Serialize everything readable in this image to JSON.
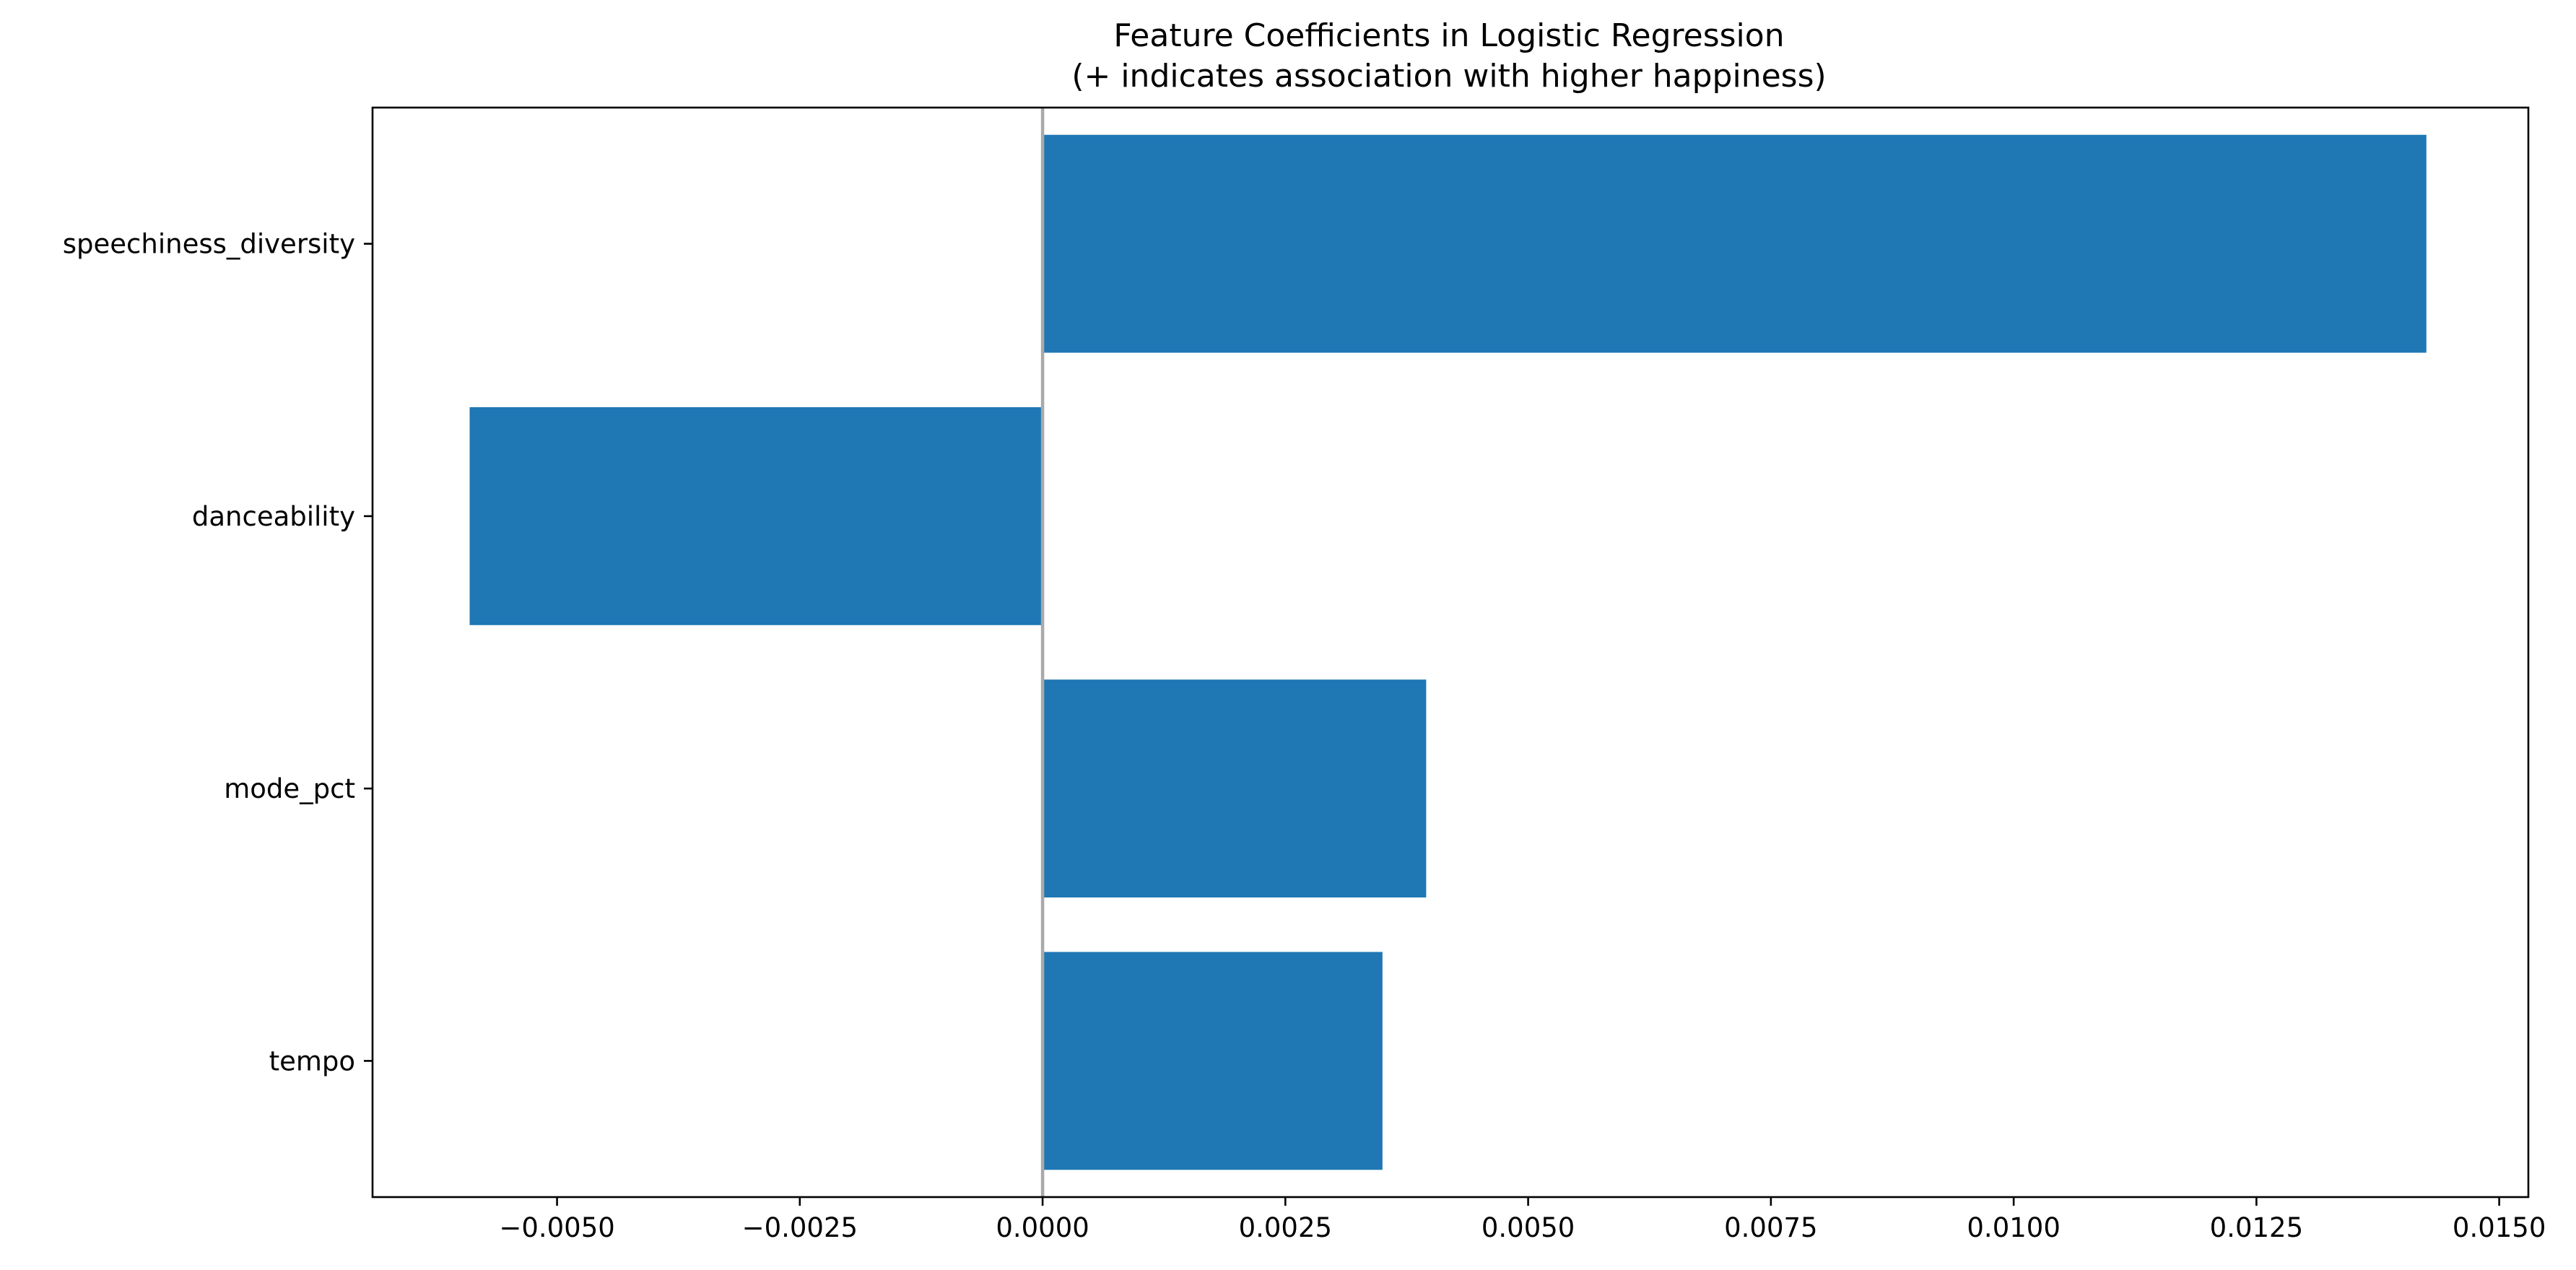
{
  "chart_data": {
    "type": "bar",
    "orientation": "horizontal",
    "title": "Feature Coefficients in Logistic Regression",
    "subtitle": "(+ indicates association with higher happiness)",
    "xlabel": "",
    "ylabel": "",
    "categories": [
      "speechiness_diversity",
      "danceability",
      "mode_pct",
      "tempo"
    ],
    "values": [
      0.01425,
      -0.0059,
      0.00395,
      0.0035
    ],
    "xlim": [
      -0.0069,
      0.0153
    ],
    "x_ticks": [
      -0.005,
      -0.0025,
      0.0,
      0.0025,
      0.005,
      0.0075,
      0.01,
      0.0125,
      0.015
    ],
    "x_tick_labels": [
      "−0.0050",
      "−0.0025",
      "0.0000",
      "0.0025",
      "0.0050",
      "0.0075",
      "0.0100",
      "0.0125",
      "0.0150"
    ],
    "reference_line": 0,
    "bar_color": "#1f77b4",
    "reference_line_color": "#a9a9a9",
    "grid": false,
    "legend": "none"
  }
}
